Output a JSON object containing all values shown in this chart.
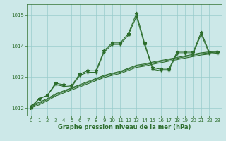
{
  "x": [
    0,
    1,
    2,
    3,
    4,
    5,
    6,
    7,
    8,
    9,
    10,
    11,
    12,
    13,
    14,
    15,
    16,
    17,
    18,
    19,
    20,
    21,
    22,
    23
  ],
  "series1": [
    1012.0,
    1012.3,
    1012.4,
    1012.8,
    1012.75,
    1012.72,
    1013.1,
    1013.2,
    1013.2,
    1013.85,
    1014.1,
    1014.1,
    1014.4,
    1015.05,
    1014.1,
    1013.3,
    1013.25,
    1013.25,
    1013.8,
    1013.8,
    1013.8,
    1014.45,
    1013.8,
    1013.8
  ],
  "series2": [
    1012.05,
    1012.3,
    1012.4,
    1012.75,
    1012.7,
    1012.68,
    1013.05,
    1013.15,
    1013.15,
    1013.8,
    1014.05,
    1014.05,
    1014.35,
    1014.95,
    1014.05,
    1013.25,
    1013.2,
    1013.2,
    1013.75,
    1013.75,
    1013.75,
    1014.38,
    1013.75,
    1013.75
  ],
  "trend1": [
    1012.08,
    1012.18,
    1012.3,
    1012.45,
    1012.55,
    1012.65,
    1012.75,
    1012.85,
    1012.95,
    1013.05,
    1013.12,
    1013.18,
    1013.28,
    1013.38,
    1013.42,
    1013.48,
    1013.53,
    1013.58,
    1013.63,
    1013.68,
    1013.73,
    1013.78,
    1013.81,
    1013.84
  ],
  "trend2": [
    1012.04,
    1012.14,
    1012.27,
    1012.42,
    1012.52,
    1012.62,
    1012.72,
    1012.82,
    1012.92,
    1013.02,
    1013.09,
    1013.15,
    1013.25,
    1013.35,
    1013.39,
    1013.45,
    1013.5,
    1013.55,
    1013.6,
    1013.65,
    1013.7,
    1013.75,
    1013.78,
    1013.81
  ],
  "trend3": [
    1012.0,
    1012.1,
    1012.23,
    1012.38,
    1012.48,
    1012.58,
    1012.68,
    1012.78,
    1012.88,
    1012.98,
    1013.05,
    1013.11,
    1013.21,
    1013.31,
    1013.35,
    1013.41,
    1013.46,
    1013.51,
    1013.56,
    1013.61,
    1013.66,
    1013.71,
    1013.74,
    1013.77
  ],
  "line_color": "#2d6e2d",
  "bg_color": "#cce8e8",
  "grid_color": "#99cccc",
  "xlabel": "Graphe pression niveau de la mer (hPa)",
  "ylim_min": 1011.75,
  "ylim_max": 1015.35,
  "yticks": [
    1012,
    1013,
    1014,
    1015
  ],
  "xticks": [
    0,
    1,
    2,
    3,
    4,
    5,
    6,
    7,
    8,
    9,
    10,
    11,
    12,
    13,
    14,
    15,
    16,
    17,
    18,
    19,
    20,
    21,
    22,
    23
  ]
}
